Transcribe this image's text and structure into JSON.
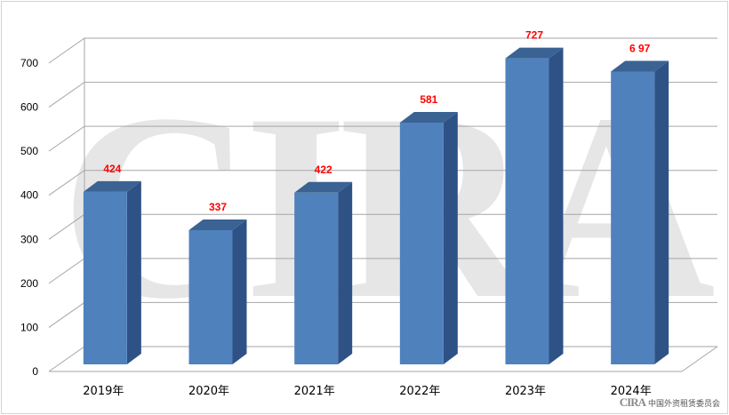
{
  "watermark": "CIRA",
  "footer": {
    "logo_mark": "CIRA",
    "org_name": "中国外资租赁委员会"
  },
  "colors": {
    "bar_front": "#4f81bd",
    "bar_side": "#2f5286",
    "bar_top": "#3a6293",
    "data_label": "#ff0000",
    "grid": "#a6a6a6",
    "axis_text": "#000000"
  },
  "chart_data": {
    "type": "bar",
    "categories": [
      "2019年",
      "2020年",
      "2021年",
      "2022年",
      "2023年",
      "2024年"
    ],
    "values": [
      424,
      337,
      422,
      581,
      727,
      697
    ],
    "data_labels": [
      "424",
      "337",
      "422",
      "581",
      "727",
      "6 97"
    ],
    "y_ticks": [
      "0",
      "100",
      "200",
      "300",
      "400",
      "500",
      "600",
      "700"
    ],
    "ylim": [
      0,
      700
    ],
    "grid": true,
    "title": "",
    "xlabel": "",
    "ylabel": ""
  }
}
